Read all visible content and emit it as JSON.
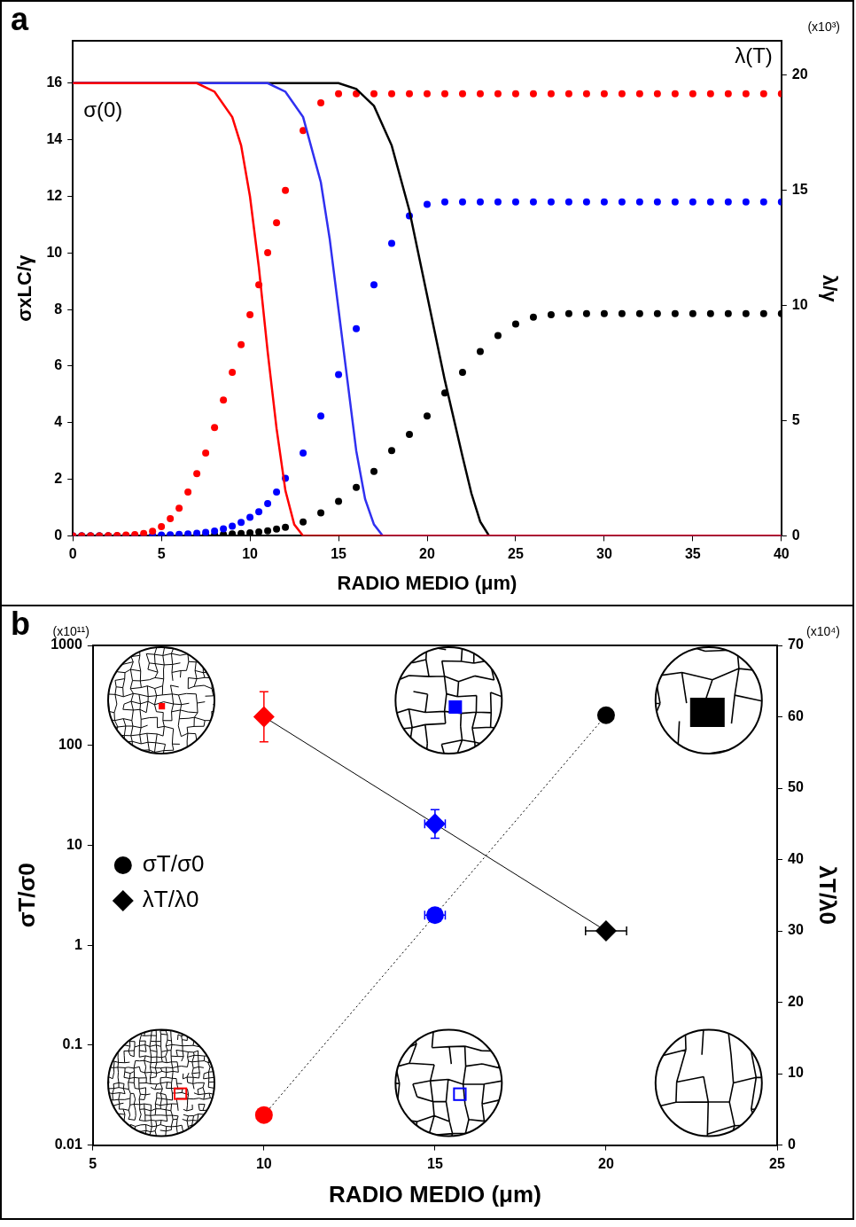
{
  "chart_data": [
    {
      "type": "scatter",
      "panel_label": "a",
      "x_label": "RADIO MEDIO (μm)",
      "y_label": "σxLC/γ",
      "y2_label": "λ/γ",
      "y2_scale_label": "(x10³)",
      "annotations": [
        "σ(0)",
        "λ(T)"
      ],
      "xlim": [
        0,
        40
      ],
      "xticks": [
        0,
        5,
        10,
        15,
        20,
        25,
        30,
        35,
        40
      ],
      "ylim": [
        0,
        17.5
      ],
      "yticks": [
        0,
        2,
        4,
        6,
        8,
        10,
        12,
        14,
        16
      ],
      "y2lim": [
        0,
        21.5
      ],
      "y2ticks": [
        0,
        5,
        10,
        15,
        20
      ],
      "grid": false,
      "series": [
        {
          "type": "line",
          "color": "#ff0000",
          "x": [
            0,
            7,
            8,
            9,
            9.5,
            10,
            10.5,
            11,
            11.5,
            12,
            12.5,
            13,
            40
          ],
          "values": [
            16,
            16,
            15.7,
            14.8,
            13.8,
            12,
            9.5,
            6.5,
            3.8,
            1.6,
            0.4,
            0,
            0
          ]
        },
        {
          "type": "line",
          "color": "#3030f0",
          "x": [
            0,
            11,
            12,
            13,
            14,
            14.5,
            15,
            15.5,
            16,
            16.5,
            17,
            17.5,
            40
          ],
          "values": [
            16,
            16,
            15.7,
            14.8,
            12.5,
            10.5,
            8,
            5.5,
            3,
            1.3,
            0.4,
            0,
            0
          ]
        },
        {
          "type": "line",
          "color": "#000000",
          "x": [
            0,
            15,
            16,
            17,
            18,
            19,
            20,
            21,
            22,
            22.5,
            23,
            23.5,
            40
          ],
          "values": [
            16,
            16,
            15.8,
            15.2,
            13.8,
            11.5,
            8.5,
            5.5,
            2.8,
            1.5,
            0.5,
            0,
            0
          ]
        },
        {
          "type": "scatter",
          "marker": "circle",
          "color": "#ff0000",
          "axis": "y2",
          "x": [
            0,
            0.5,
            1,
            1.5,
            2,
            2.5,
            3,
            3.5,
            4,
            4.5,
            5,
            5.5,
            6,
            6.5,
            7,
            7.5,
            8,
            8.5,
            9,
            9.5,
            10,
            10.5,
            11,
            11.5,
            12,
            13,
            14,
            15,
            16,
            17,
            18,
            19,
            20,
            21,
            22,
            23,
            24,
            25,
            26,
            27,
            28,
            29,
            30,
            31,
            32,
            33,
            34,
            35,
            36,
            37,
            38,
            39,
            40
          ],
          "values": [
            0,
            0,
            0,
            0,
            0.01,
            0.02,
            0.03,
            0.05,
            0.1,
            0.2,
            0.4,
            0.75,
            1.2,
            1.9,
            2.7,
            3.6,
            4.7,
            5.9,
            7.1,
            8.3,
            9.6,
            10.9,
            12.3,
            13.6,
            15,
            17.6,
            18.8,
            19.2,
            19.2,
            19.2,
            19.2,
            19.2,
            19.2,
            19.2,
            19.2,
            19.2,
            19.2,
            19.2,
            19.2,
            19.2,
            19.2,
            19.2,
            19.2,
            19.2,
            19.2,
            19.2,
            19.2,
            19.2,
            19.2,
            19.2,
            19.2,
            19.2,
            19.2
          ]
        },
        {
          "type": "scatter",
          "marker": "circle",
          "color": "#0000ff",
          "axis": "y2",
          "x": [
            0,
            0.5,
            1,
            1.5,
            2,
            2.5,
            3,
            3.5,
            4,
            4.5,
            5,
            5.5,
            6,
            6.5,
            7,
            7.5,
            8,
            8.5,
            9,
            9.5,
            10,
            10.5,
            11,
            11.5,
            12,
            13,
            14,
            15,
            16,
            17,
            18,
            19,
            20,
            21,
            22,
            23,
            24,
            25,
            26,
            27,
            28,
            29,
            30,
            31,
            32,
            33,
            34,
            35,
            36,
            37,
            38,
            39,
            40
          ],
          "values": [
            0,
            0,
            0,
            0,
            0,
            0,
            0,
            0.01,
            0.01,
            0.02,
            0.03,
            0.04,
            0.06,
            0.08,
            0.11,
            0.15,
            0.21,
            0.3,
            0.42,
            0.58,
            0.8,
            1.05,
            1.4,
            1.9,
            2.5,
            3.6,
            5.2,
            7,
            9,
            10.9,
            12.7,
            13.9,
            14.4,
            14.5,
            14.5,
            14.5,
            14.5,
            14.5,
            14.5,
            14.5,
            14.5,
            14.5,
            14.5,
            14.5,
            14.5,
            14.5,
            14.5,
            14.5,
            14.5,
            14.5,
            14.5,
            14.5,
            14.5
          ]
        },
        {
          "type": "scatter",
          "marker": "circle",
          "color": "#000000",
          "axis": "y2",
          "x": [
            0,
            0.5,
            1,
            1.5,
            2,
            2.5,
            3,
            3.5,
            4,
            4.5,
            5,
            5.5,
            6,
            6.5,
            7,
            7.5,
            8,
            8.5,
            9,
            9.5,
            10,
            10.5,
            11,
            11.5,
            12,
            13,
            14,
            15,
            16,
            17,
            18,
            19,
            20,
            21,
            22,
            23,
            24,
            25,
            26,
            27,
            28,
            29,
            30,
            31,
            32,
            33,
            34,
            35,
            36,
            37,
            38,
            39,
            40
          ],
          "values": [
            0,
            0,
            0,
            0,
            0,
            0,
            0,
            0,
            0,
            0,
            0,
            0,
            0,
            0.01,
            0.02,
            0.03,
            0.04,
            0.06,
            0.08,
            0.1,
            0.13,
            0.17,
            0.22,
            0.29,
            0.37,
            0.6,
            1,
            1.5,
            2.1,
            2.8,
            3.7,
            4.4,
            5.2,
            6.2,
            7.1,
            8,
            8.7,
            9.2,
            9.5,
            9.6,
            9.65,
            9.65,
            9.65,
            9.65,
            9.65,
            9.65,
            9.65,
            9.65,
            9.65,
            9.65,
            9.65,
            9.65,
            9.65
          ]
        }
      ]
    },
    {
      "type": "scatter",
      "panel_label": "b",
      "x_label": "RADIO MEDIO (μm)",
      "y_label": "σT/σ0",
      "y2_label": "λT/λ0",
      "y_scale_label": "(x10¹¹)",
      "y2_scale_label": "(x10⁴)",
      "log": "y",
      "xlim": [
        5,
        25
      ],
      "xticks": [
        5,
        10,
        15,
        20,
        25
      ],
      "ylim": [
        0.01,
        1000
      ],
      "yticks": [
        0.01,
        0.1,
        1,
        10,
        100,
        1000
      ],
      "y2lim": [
        0,
        70
      ],
      "y2ticks": [
        0,
        10,
        20,
        30,
        40,
        50,
        60,
        70
      ],
      "grid": false,
      "legend": "left",
      "series": [
        {
          "name": "σT/σ0",
          "marker": "circle",
          "line_style": "dotted",
          "colors": [
            "#ff0000",
            "#0000ff",
            "#000000"
          ],
          "x": [
            10,
            15,
            20
          ],
          "values": [
            0.02,
            2,
            200
          ],
          "x_error": [
            0,
            0.3,
            0
          ]
        },
        {
          "name": "λT/λ0",
          "marker": "diamond",
          "line_style": "solid",
          "axis": "y2",
          "colors": [
            "#ff0000",
            "#0000ff",
            "#000000"
          ],
          "x": [
            10,
            15,
            20
          ],
          "values": [
            60,
            45,
            30
          ],
          "x_error": [
            0,
            0.3,
            0.6
          ],
          "y_error": [
            3.5,
            2,
            0
          ]
        }
      ]
    }
  ]
}
